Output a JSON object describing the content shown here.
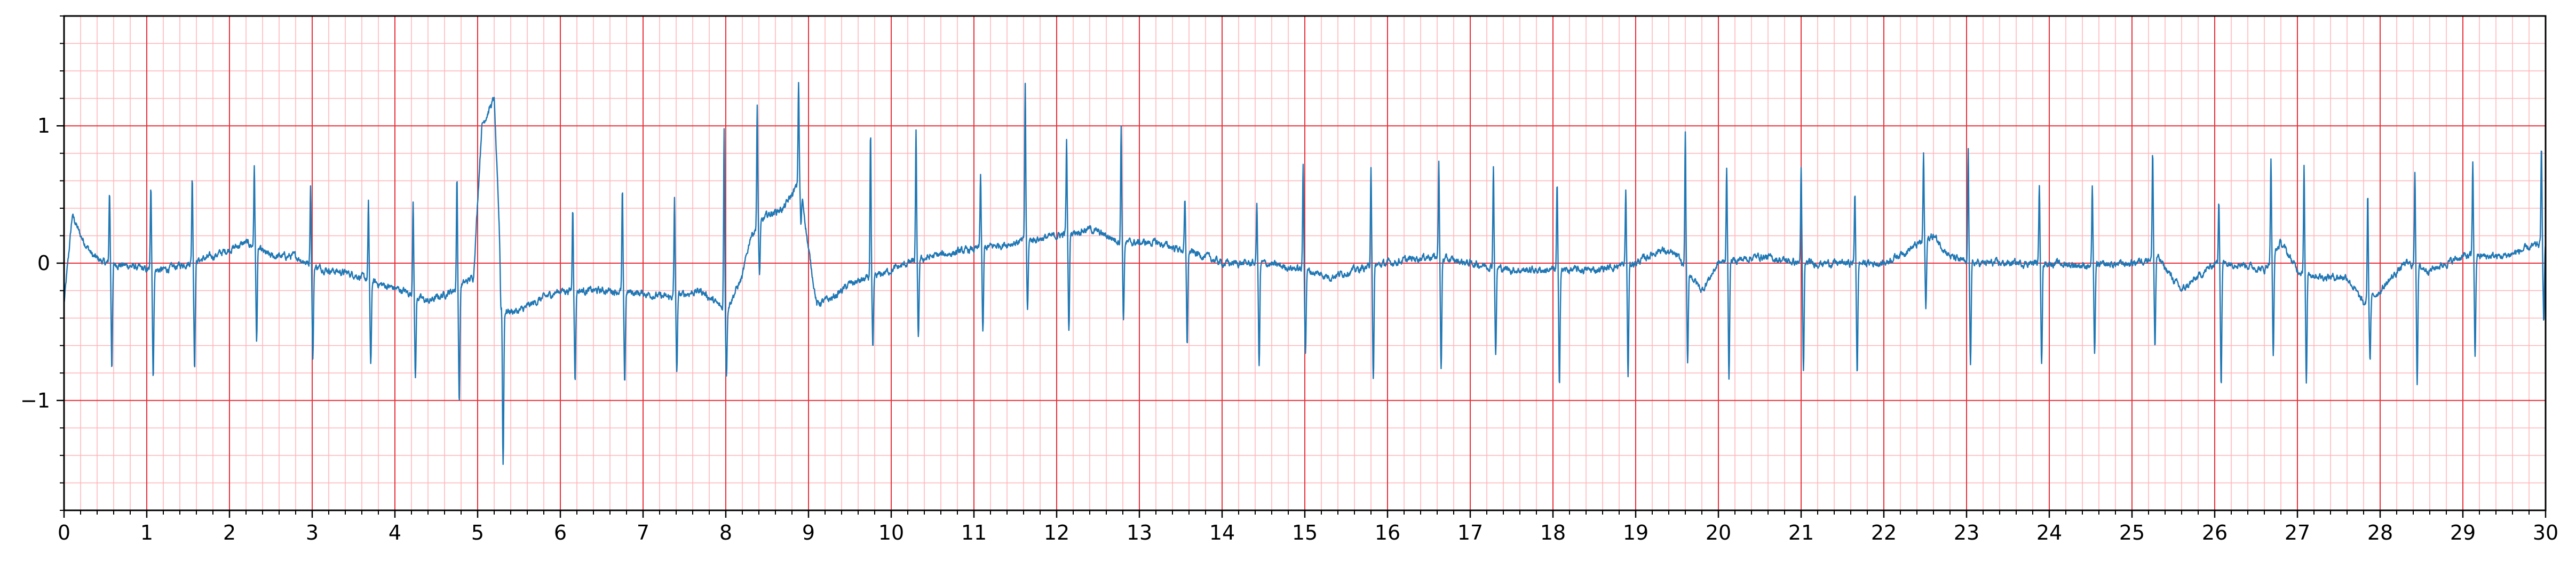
{
  "chart_data": {
    "type": "line",
    "title": "",
    "xlabel": "",
    "ylabel": "",
    "xlim": [
      0,
      30
    ],
    "ylim": [
      -1.8,
      1.8
    ],
    "x_ticks": [
      0,
      1,
      2,
      3,
      4,
      5,
      6,
      7,
      8,
      9,
      10,
      11,
      12,
      13,
      14,
      15,
      16,
      17,
      18,
      19,
      20,
      21,
      22,
      23,
      24,
      25,
      26,
      27,
      28,
      29,
      30
    ],
    "x_tick_labels": [
      "0",
      "1",
      "2",
      "3",
      "4",
      "5",
      "6",
      "7",
      "8",
      "9",
      "10",
      "11",
      "12",
      "13",
      "14",
      "15",
      "16",
      "17",
      "18",
      "19",
      "20",
      "21",
      "22",
      "23",
      "24",
      "25",
      "26",
      "27",
      "28",
      "29",
      "30"
    ],
    "y_ticks": [
      -1,
      0,
      1
    ],
    "y_tick_labels": [
      "−1",
      "0",
      "1"
    ],
    "grid": "on",
    "grid_major_color": "#e8303a",
    "grid_minor_color": "#ffb3b8",
    "line_color": "#1f77b4",
    "series": [
      {
        "name": "",
        "baseline": [
          [
            0,
            -0.3
          ],
          [
            0.1,
            0.35
          ],
          [
            0.2,
            0.2
          ],
          [
            0.35,
            0.05
          ],
          [
            0.5,
            0.0
          ],
          [
            0.8,
            -0.02
          ],
          [
            1.0,
            -0.05
          ],
          [
            1.2,
            -0.05
          ],
          [
            1.5,
            0.0
          ],
          [
            1.8,
            0.05
          ],
          [
            2.0,
            0.1
          ],
          [
            2.2,
            0.15
          ],
          [
            2.5,
            0.05
          ],
          [
            2.8,
            0.05
          ],
          [
            3.0,
            -0.02
          ],
          [
            3.2,
            -0.05
          ],
          [
            3.5,
            -0.08
          ],
          [
            3.8,
            -0.15
          ],
          [
            4.1,
            -0.2
          ],
          [
            4.4,
            -0.28
          ],
          [
            4.7,
            -0.2
          ],
          [
            4.95,
            -0.1
          ],
          [
            5.05,
            1.0
          ],
          [
            5.2,
            1.2
          ],
          [
            5.3,
            -0.35
          ],
          [
            5.5,
            -0.35
          ],
          [
            5.8,
            -0.25
          ],
          [
            6.0,
            -0.2
          ],
          [
            6.3,
            -0.2
          ],
          [
            6.6,
            -0.2
          ],
          [
            7.0,
            -0.22
          ],
          [
            7.3,
            -0.25
          ],
          [
            7.7,
            -0.2
          ],
          [
            8.0,
            -0.35
          ],
          [
            8.2,
            -0.1
          ],
          [
            8.3,
            0.2
          ],
          [
            8.5,
            0.35
          ],
          [
            8.7,
            0.4
          ],
          [
            8.9,
            0.6
          ],
          [
            9.0,
            0.1
          ],
          [
            9.1,
            -0.3
          ],
          [
            9.3,
            -0.25
          ],
          [
            9.5,
            -0.15
          ],
          [
            9.8,
            -0.1
          ],
          [
            10.0,
            -0.05
          ],
          [
            10.2,
            0.0
          ],
          [
            10.5,
            0.05
          ],
          [
            11.0,
            0.1
          ],
          [
            11.5,
            0.15
          ],
          [
            12.0,
            0.2
          ],
          [
            12.4,
            0.25
          ],
          [
            12.8,
            0.15
          ],
          [
            13.2,
            0.15
          ],
          [
            13.5,
            0.1
          ],
          [
            13.8,
            0.05
          ],
          [
            14.0,
            0.0
          ],
          [
            14.5,
            0.0
          ],
          [
            15.0,
            -0.05
          ],
          [
            15.3,
            -0.1
          ],
          [
            15.6,
            -0.05
          ],
          [
            16.0,
            0.0
          ],
          [
            16.5,
            0.05
          ],
          [
            17.0,
            0.0
          ],
          [
            17.5,
            -0.05
          ],
          [
            18.0,
            -0.05
          ],
          [
            18.5,
            -0.05
          ],
          [
            19.0,
            0.0
          ],
          [
            19.3,
            0.1
          ],
          [
            19.5,
            0.05
          ],
          [
            19.8,
            -0.2
          ],
          [
            20.0,
            0.0
          ],
          [
            20.5,
            0.05
          ],
          [
            21.0,
            0.0
          ],
          [
            21.5,
            0.0
          ],
          [
            22.0,
            0.0
          ],
          [
            22.3,
            0.1
          ],
          [
            22.6,
            0.2
          ],
          [
            22.8,
            0.05
          ],
          [
            23.0,
            0.0
          ],
          [
            23.5,
            0.0
          ],
          [
            24.0,
            0.0
          ],
          [
            24.5,
            -0.02
          ],
          [
            25.0,
            0.0
          ],
          [
            25.3,
            0.05
          ],
          [
            25.6,
            -0.2
          ],
          [
            25.8,
            -0.1
          ],
          [
            26.0,
            0.0
          ],
          [
            26.3,
            0.0
          ],
          [
            26.6,
            -0.05
          ],
          [
            26.8,
            0.15
          ],
          [
            27.0,
            -0.05
          ],
          [
            27.3,
            -0.1
          ],
          [
            27.6,
            -0.1
          ],
          [
            27.8,
            -0.3
          ],
          [
            28.0,
            -0.2
          ],
          [
            28.3,
            0.0
          ],
          [
            28.6,
            -0.05
          ],
          [
            29.0,
            0.05
          ],
          [
            29.5,
            0.05
          ],
          [
            30.0,
            0.15
          ]
        ],
        "beats": [
          [
            0.55,
            0.52,
            -0.75
          ],
          [
            1.05,
            0.57,
            -0.82
          ],
          [
            1.55,
            0.63,
            -0.75
          ],
          [
            2.3,
            0.7,
            -0.55
          ],
          [
            2.98,
            0.57,
            -0.68
          ],
          [
            3.68,
            0.43,
            -0.75
          ],
          [
            4.22,
            0.48,
            -0.82
          ],
          [
            4.75,
            0.62,
            -1.02
          ],
          [
            5.28,
            -0.3,
            -1.15
          ],
          [
            6.15,
            0.42,
            -0.85
          ],
          [
            6.75,
            0.52,
            -0.87
          ],
          [
            7.38,
            0.47,
            -0.78
          ],
          [
            7.98,
            0.98,
            -0.8
          ],
          [
            8.38,
            1.13,
            -0.1
          ],
          [
            8.88,
            1.33,
            0.3
          ],
          [
            9.75,
            0.95,
            -0.65
          ],
          [
            10.3,
            0.95,
            -0.55
          ],
          [
            11.08,
            0.65,
            -0.52
          ],
          [
            11.62,
            1.3,
            -0.35
          ],
          [
            12.12,
            0.88,
            -0.5
          ],
          [
            12.78,
            1.0,
            -0.4
          ],
          [
            13.55,
            0.45,
            -0.58
          ],
          [
            14.42,
            0.42,
            -0.75
          ],
          [
            14.98,
            0.72,
            -0.65
          ],
          [
            15.8,
            0.72,
            -0.87
          ],
          [
            16.62,
            0.75,
            -0.78
          ],
          [
            17.28,
            0.72,
            -0.67
          ],
          [
            18.05,
            0.57,
            -0.87
          ],
          [
            18.88,
            0.53,
            -0.82
          ],
          [
            19.6,
            0.95,
            -0.72
          ],
          [
            20.1,
            0.72,
            -0.82
          ],
          [
            21.0,
            0.68,
            -0.8
          ],
          [
            21.65,
            0.52,
            -0.82
          ],
          [
            22.48,
            0.8,
            -0.35
          ],
          [
            23.02,
            0.83,
            -0.72
          ],
          [
            23.88,
            0.58,
            -0.72
          ],
          [
            24.52,
            0.55,
            -0.65
          ],
          [
            25.25,
            0.8,
            -0.62
          ],
          [
            26.05,
            0.48,
            -0.88
          ],
          [
            26.68,
            0.77,
            -0.72
          ],
          [
            27.08,
            0.71,
            -0.88
          ],
          [
            27.85,
            0.5,
            -0.72
          ],
          [
            28.42,
            0.68,
            -0.85
          ],
          [
            29.12,
            0.73,
            -0.67
          ],
          [
            29.95,
            0.82,
            -0.42
          ]
        ]
      }
    ]
  }
}
